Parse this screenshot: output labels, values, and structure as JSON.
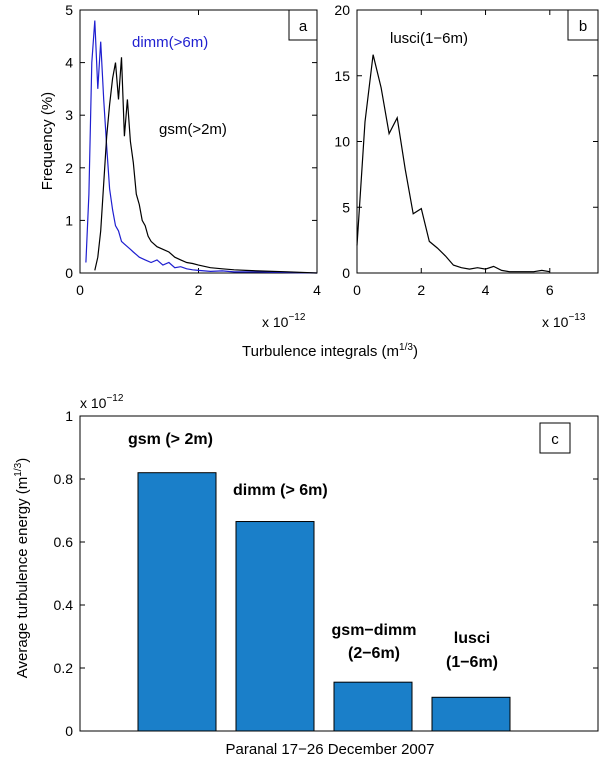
{
  "chart_data": [
    {
      "panel": "a",
      "type": "line",
      "ylabel": "Frequency (%)",
      "xlim": [
        0,
        4
      ],
      "ylim": [
        0,
        5
      ],
      "xticks": [
        "0",
        "2",
        "4"
      ],
      "yticks": [
        "0",
        "1",
        "2",
        "3",
        "4",
        "5"
      ],
      "x_exponent": "x 10",
      "x_exponent_power": "−12",
      "series": [
        {
          "name": "dimm(>6m)",
          "color": "#1f1fd0",
          "x": [
            0.1,
            0.15,
            0.2,
            0.25,
            0.3,
            0.35,
            0.4,
            0.45,
            0.5,
            0.55,
            0.6,
            0.65,
            0.7,
            0.75,
            0.8,
            0.85,
            0.9,
            0.95,
            1.0,
            1.1,
            1.2,
            1.3,
            1.4,
            1.5,
            1.6,
            1.7,
            1.8,
            1.9,
            2.0,
            2.2,
            2.4,
            2.6,
            2.8,
            3.0,
            3.5,
            4.0
          ],
          "y": [
            0.2,
            1.5,
            4.0,
            4.8,
            3.5,
            4.4,
            3.3,
            2.4,
            1.6,
            1.2,
            0.9,
            0.8,
            0.6,
            0.55,
            0.5,
            0.45,
            0.4,
            0.35,
            0.3,
            0.25,
            0.2,
            0.25,
            0.15,
            0.2,
            0.1,
            0.12,
            0.08,
            0.06,
            0.05,
            0.03,
            0.04,
            0.02,
            0.02,
            0.02,
            0.01,
            0.0
          ]
        },
        {
          "name": "gsm(>2m)",
          "color": "#000000",
          "x": [
            0.25,
            0.3,
            0.35,
            0.4,
            0.45,
            0.5,
            0.55,
            0.6,
            0.65,
            0.7,
            0.75,
            0.8,
            0.85,
            0.9,
            0.95,
            1.0,
            1.05,
            1.1,
            1.15,
            1.2,
            1.3,
            1.4,
            1.5,
            1.6,
            1.7,
            1.8,
            1.9,
            2.0,
            2.2,
            2.4,
            2.6,
            2.8,
            3.0,
            3.5,
            4.0
          ],
          "y": [
            0.05,
            0.3,
            0.8,
            1.7,
            2.6,
            3.2,
            3.7,
            4.0,
            3.3,
            4.1,
            2.6,
            3.3,
            2.5,
            2.1,
            1.5,
            1.3,
            1.0,
            0.9,
            0.7,
            0.6,
            0.5,
            0.45,
            0.4,
            0.3,
            0.25,
            0.2,
            0.18,
            0.15,
            0.1,
            0.08,
            0.06,
            0.05,
            0.04,
            0.02,
            0.0
          ]
        }
      ]
    },
    {
      "panel": "b",
      "type": "line",
      "xlim": [
        0,
        7.5
      ],
      "ylim": [
        0,
        20
      ],
      "xticks": [
        "0",
        "2",
        "4",
        "6"
      ],
      "yticks": [
        "0",
        "5",
        "10",
        "15",
        "20"
      ],
      "x_exponent": "x 10",
      "x_exponent_power": "−13",
      "series": [
        {
          "name": "lusci(1−6m)",
          "color": "#000000",
          "x": [
            0.0,
            0.25,
            0.5,
            0.75,
            1.0,
            1.25,
            1.5,
            1.75,
            2.0,
            2.25,
            2.5,
            2.75,
            3.0,
            3.25,
            3.5,
            3.75,
            4.0,
            4.25,
            4.5,
            4.75,
            5.0,
            5.25,
            5.5,
            5.75,
            6.0
          ],
          "y": [
            2.1,
            11.5,
            16.6,
            14.1,
            10.6,
            11.8,
            7.9,
            4.5,
            4.9,
            2.4,
            1.9,
            1.3,
            0.6,
            0.4,
            0.3,
            0.4,
            0.3,
            0.5,
            0.2,
            0.1,
            0.1,
            0.1,
            0.1,
            0.2,
            0.1
          ]
        }
      ]
    },
    {
      "panel": "c",
      "type": "bar",
      "ylabel": "Average turbulence energy (m",
      "ylabel_sup": "1/3",
      "xlabel": "Paranal 17−26 December 2007",
      "ylim": [
        0,
        1
      ],
      "yticks": [
        "0",
        "0.2",
        "0.4",
        "0.6",
        "0.8",
        "1"
      ],
      "y_exponent": "x 10",
      "y_exponent_power": "−12",
      "bar_color": "#1a7fc9",
      "bars": [
        {
          "label_line1": "gsm (> 2m)",
          "label_line2": "",
          "value": 0.82
        },
        {
          "label_line1": "dimm (> 6m)",
          "label_line2": "",
          "value": 0.665
        },
        {
          "label_line1": "gsm−dimm",
          "label_line2": "(2−6m)",
          "value": 0.155
        },
        {
          "label_line1": "lusci",
          "label_line2": "(1−6m)",
          "value": 0.107
        }
      ]
    }
  ],
  "shared": {
    "xlabel_ab": "Turbulence integrals (m",
    "xlabel_ab_sup": "1/3"
  }
}
